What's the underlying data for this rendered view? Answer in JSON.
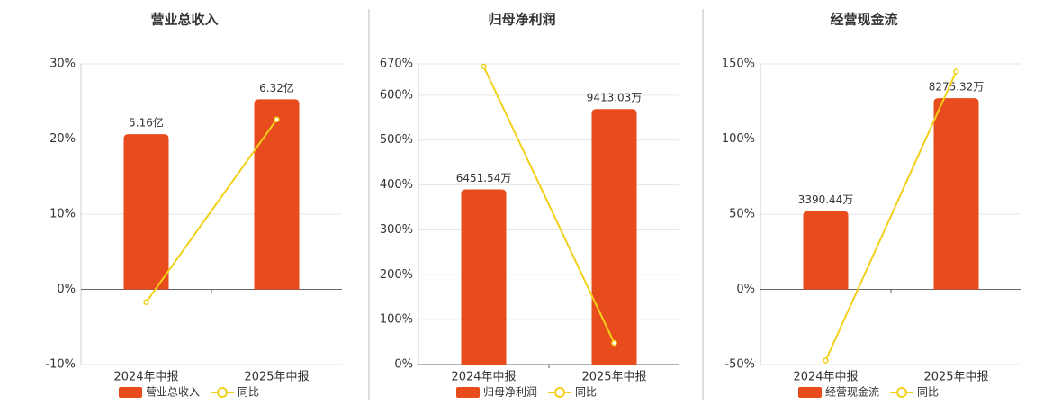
{
  "chart_data": [
    {
      "type": "bar-line",
      "title": "营业总收入",
      "categories": [
        "2024年中报",
        "2025年中报"
      ],
      "series": [
        {
          "name": "营业总收入",
          "color": "#e84c1c",
          "axis": "y2",
          "values": [
            5.16,
            6.32
          ],
          "value_labels": [
            "5.16亿",
            "6.32亿"
          ]
        },
        {
          "name": "同比",
          "color": "#f2d01a",
          "values": [
            -1.7,
            22.6
          ]
        }
      ],
      "ylim": [
        -10,
        30
      ],
      "yticks": [
        {
          "value": -10,
          "label": "-10%"
        },
        {
          "value": 0,
          "label": "0%"
        },
        {
          "value": 10,
          "label": "10%"
        },
        {
          "value": 20,
          "label": "20%"
        },
        {
          "value": 30,
          "label": "30%"
        }
      ],
      "y2lim": [
        -2.5,
        7.5
      ],
      "grid": true
    },
    {
      "type": "bar-line",
      "title": "归母净利润",
      "categories": [
        "2024年中报",
        "2025年中报"
      ],
      "series": [
        {
          "name": "归母净利润",
          "color": "#e84c1c",
          "axis": "y2",
          "values": [
            6451.54,
            9413.03
          ],
          "value_labels": [
            "6451.54万",
            "9413.03万"
          ]
        },
        {
          "name": "同比",
          "color": "#f2d01a",
          "values": [
            664,
            48
          ]
        }
      ],
      "ylim": [
        0,
        670
      ],
      "yticks": [
        {
          "value": 0,
          "label": "0%"
        },
        {
          "value": 100,
          "label": "100%"
        },
        {
          "value": 200,
          "label": "200%"
        },
        {
          "value": 300,
          "label": "300%"
        },
        {
          "value": 400,
          "label": "400%"
        },
        {
          "value": 500,
          "label": "500%"
        },
        {
          "value": 600,
          "label": "600%"
        },
        {
          "value": 670,
          "label": "670%"
        }
      ],
      "y2lim": [
        0,
        11080
      ],
      "grid": true
    },
    {
      "type": "bar-line",
      "title": "经营现金流",
      "categories": [
        "2024年中报",
        "2025年中报"
      ],
      "series": [
        {
          "name": "经营现金流",
          "color": "#e84c1c",
          "axis": "y2",
          "values": [
            3390.44,
            8275.32
          ],
          "value_labels": [
            "3390.44万",
            "8275.32万"
          ]
        },
        {
          "name": "同比",
          "color": "#f2d01a",
          "values": [
            -47.3,
            144.9
          ]
        }
      ],
      "ylim": [
        -50,
        150
      ],
      "yticks": [
        {
          "value": -50,
          "label": "-50%"
        },
        {
          "value": 0,
          "label": "0%"
        },
        {
          "value": 50,
          "label": "50%"
        },
        {
          "value": 100,
          "label": "100%"
        },
        {
          "value": 150,
          "label": "150%"
        }
      ],
      "y2lim": [
        -3253,
        9759
      ],
      "grid": true
    }
  ]
}
